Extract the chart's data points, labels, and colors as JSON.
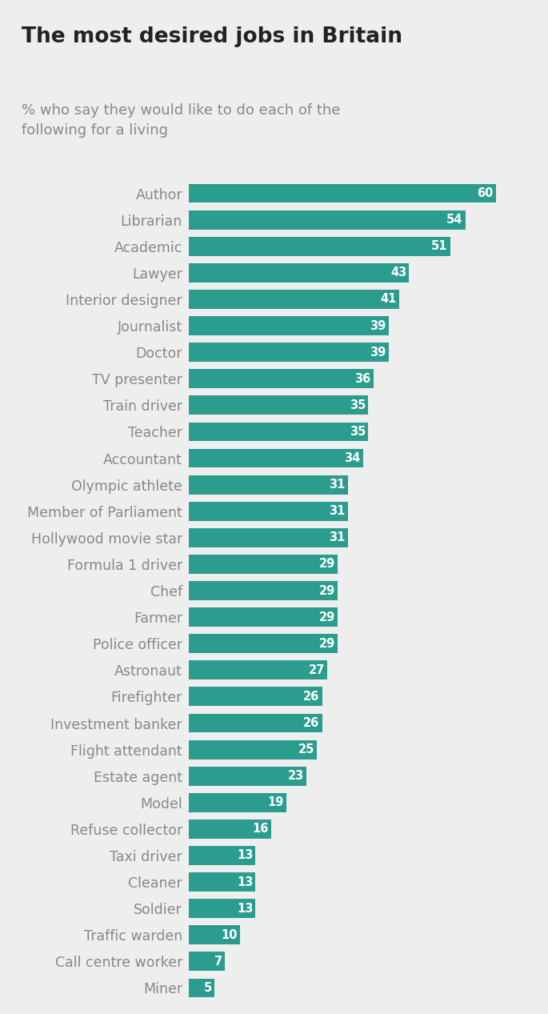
{
  "title": "The most desired jobs in Britain",
  "subtitle": "% who say they would like to do each of the\nfollowing for a living",
  "bar_color": "#2a9d8f",
  "label_color": "#888888",
  "value_color": "#ffffff",
  "background_color": "#eeeeee",
  "plot_background_color": "#eeeeee",
  "header_background_color": "#e0e0e0",
  "categories": [
    "Author",
    "Librarian",
    "Academic",
    "Lawyer",
    "Interior designer",
    "Journalist",
    "Doctor",
    "TV presenter",
    "Train driver",
    "Teacher",
    "Accountant",
    "Olympic athlete",
    "Member of Parliament",
    "Hollywood movie star",
    "Formula 1 driver",
    "Chef",
    "Farmer",
    "Police officer",
    "Astronaut",
    "Firefighter",
    "Investment banker",
    "Flight attendant",
    "Estate agent",
    "Model",
    "Refuse collector",
    "Taxi driver",
    "Cleaner",
    "Soldier",
    "Traffic warden",
    "Call centre worker",
    "Miner"
  ],
  "values": [
    60,
    54,
    51,
    43,
    41,
    39,
    39,
    36,
    35,
    35,
    34,
    31,
    31,
    31,
    29,
    29,
    29,
    29,
    27,
    26,
    26,
    25,
    23,
    19,
    16,
    13,
    13,
    13,
    10,
    7,
    5
  ],
  "xlim": [
    0,
    68
  ],
  "title_fontsize": 19,
  "subtitle_fontsize": 13,
  "label_fontsize": 12.5,
  "value_fontsize": 10.5
}
